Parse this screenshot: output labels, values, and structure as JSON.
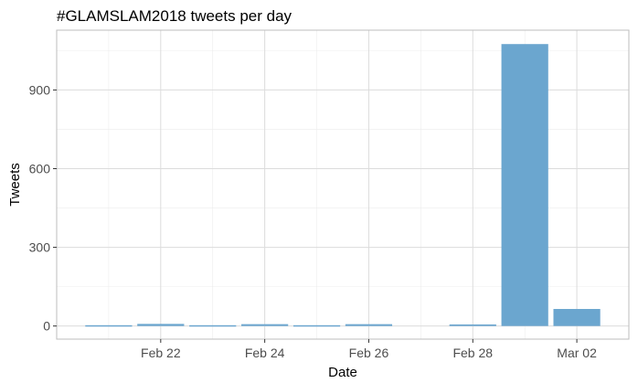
{
  "chart_data": {
    "type": "bar",
    "title": "#GLAMSLAM2018 tweets per day",
    "xlabel": "Date",
    "ylabel": "Tweets",
    "x": [
      "2018-02-21",
      "2018-02-22",
      "2018-02-23",
      "2018-02-24",
      "2018-02-25",
      "2018-02-26",
      "2018-02-27",
      "2018-02-28",
      "2018-03-01",
      "2018-03-02"
    ],
    "values": [
      3,
      8,
      3,
      7,
      3,
      7,
      0,
      6,
      1075,
      65
    ],
    "xlim": [
      "2018-02-20",
      "2018-03-03"
    ],
    "ylim": [
      -50,
      1128
    ],
    "y_ticks": [
      0,
      300,
      600,
      900
    ],
    "y_tick_labels": [
      "0",
      "300",
      "600",
      "900"
    ],
    "x_ticks": [
      "2018-02-22",
      "2018-02-24",
      "2018-02-26",
      "2018-02-28",
      "2018-03-02"
    ],
    "x_tick_labels": [
      "Feb 22",
      "Feb 24",
      "Feb 26",
      "Feb 28",
      "Mar 02"
    ],
    "bar_color": "#6ba6cf",
    "grid": true,
    "legend": "none"
  }
}
